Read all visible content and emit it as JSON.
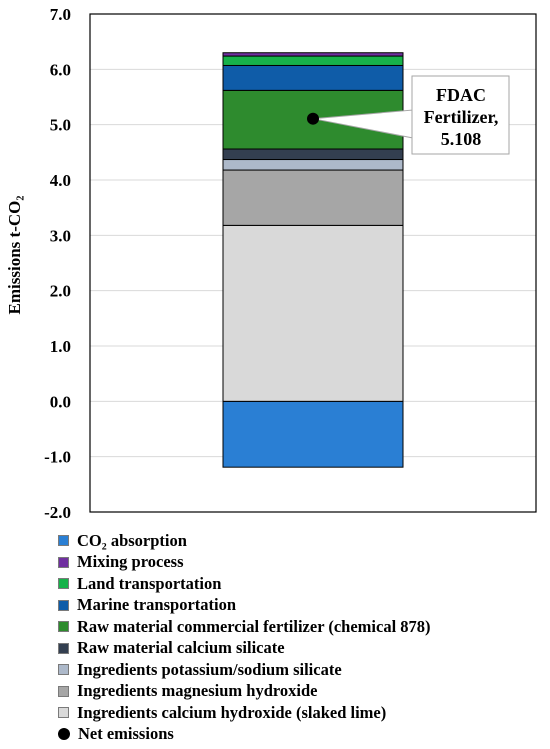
{
  "chart_data": {
    "type": "bar",
    "stacked": true,
    "title": "",
    "xlabel": "",
    "ylabel": "Emissions t-CO₂",
    "ylim": [
      -2.0,
      7.0
    ],
    "yticks": [
      "7.0",
      "6.0",
      "5.0",
      "4.0",
      "3.0",
      "2.0",
      "1.0",
      "0.0",
      "-1.0",
      "-2.0"
    ],
    "grid": true,
    "legend_position": "bottom",
    "categories": [
      "FDAC Fertilizer"
    ],
    "series": [
      {
        "name": "CO₂ absorption",
        "values": [
          -1.19
        ],
        "color": "#2a7fd4"
      },
      {
        "name": "Ingredients calcium hydroxide (slaked lime)",
        "values": [
          3.18
        ],
        "color": "#d9d9d9"
      },
      {
        "name": "Ingredients magnesium hydroxide",
        "values": [
          1.0
        ],
        "color": "#a6a6a6"
      },
      {
        "name": "Ingredients potassium/sodium silicate",
        "values": [
          0.19
        ],
        "color": "#adb9ca"
      },
      {
        "name": "Raw material calcium silicate",
        "values": [
          0.19
        ],
        "color": "#333f50"
      },
      {
        "name": "Raw material commercial fertilizer (chemical 878)",
        "values": [
          1.06
        ],
        "color": "#2e8b2e"
      },
      {
        "name": "Marine transportation",
        "values": [
          0.45
        ],
        "color": "#0f5ca8"
      },
      {
        "name": "Land transportation",
        "values": [
          0.17
        ],
        "color": "#17b24a"
      },
      {
        "name": "Mixing process",
        "values": [
          0.06
        ],
        "color": "#7030a0"
      }
    ],
    "net_emissions": {
      "name": "Net emissions",
      "value": 5.108
    },
    "annotation": {
      "line1": "FDAC",
      "line2": "Fertilizer,",
      "line3": "5.108"
    },
    "legend_order": [
      "CO₂ absorption",
      "Mixing process",
      "Land transportation",
      "Marine transportation",
      "Raw material commercial fertilizer (chemical 878)",
      "Raw material calcium silicate",
      "Ingredients potassium/sodium silicate",
      "Ingredients magnesium hydroxide",
      "Ingredients calcium hydroxide (slaked lime)",
      "Net emissions"
    ]
  }
}
